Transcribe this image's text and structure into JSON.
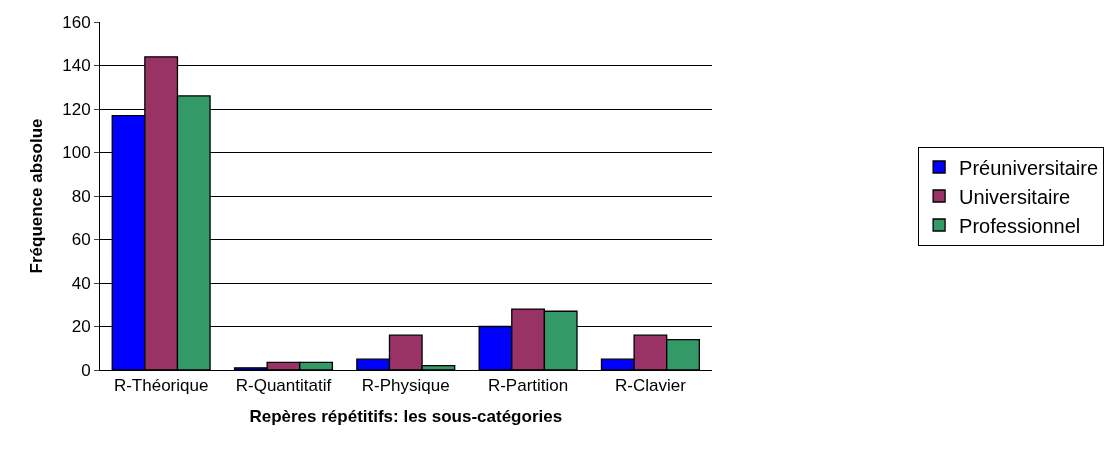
{
  "chart_data": {
    "type": "bar",
    "xlabel": "Repères répétitifs: les sous-catégories",
    "ylabel": "Fréquence absolue",
    "categories": [
      "R-Théorique",
      "R-Quantitatif",
      "R-Physique",
      "R-Partition",
      "R-Clavier"
    ],
    "series": [
      {
        "name": "Préuniversitaire",
        "color": "#0000ff",
        "values": [
          117,
          1,
          5,
          20,
          5
        ]
      },
      {
        "name": "Universitaire",
        "color": "#993366",
        "values": [
          144,
          3.5,
          16,
          28,
          16
        ]
      },
      {
        "name": "Professionnel",
        "color": "#339966",
        "values": [
          126,
          3.5,
          2,
          27,
          14
        ]
      }
    ],
    "ylim": [
      0,
      160
    ],
    "yticks": [
      0,
      20,
      40,
      60,
      80,
      100,
      120,
      140,
      160
    ],
    "grid": "y",
    "legend": "right"
  }
}
